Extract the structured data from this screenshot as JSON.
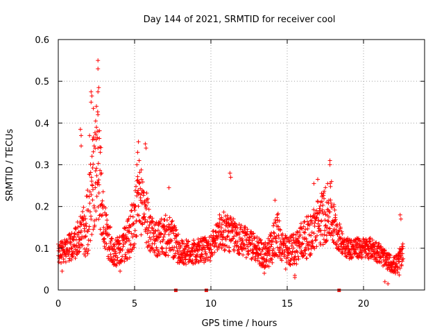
{
  "chart_data": {
    "type": "scatter",
    "title": "Day 144 of 2021, SRMTID for receiver cool",
    "xlabel": "GPS time / hours",
    "ylabel": "SRMTID / TECUs",
    "xlim": [
      0,
      24
    ],
    "ylim": [
      0,
      0.6
    ],
    "x_ticks": [
      "0",
      "5",
      "10",
      "15",
      "20"
    ],
    "y_ticks": [
      "0",
      "0.1",
      "0.2",
      "0.3",
      "0.4",
      "0.5",
      "0.6"
    ],
    "x_tick_values": [
      0,
      5,
      10,
      15,
      20
    ],
    "y_tick_values": [
      0,
      0.1,
      0.2,
      0.3,
      0.4,
      0.5,
      0.6
    ],
    "grid": true,
    "marker": "+",
    "colors": {
      "series": "#ff0000",
      "gap_marker": "#e8201c",
      "grid": "#a0a0a0"
    },
    "data_gap_markers_x": [
      7.7,
      9.7,
      18.4
    ],
    "envelope": {
      "hours": [
        0,
        0.5,
        1,
        1.5,
        2,
        2.3,
        2.5,
        2.7,
        3,
        3.5,
        4,
        4.5,
        5,
        5.3,
        5.6,
        6,
        6.5,
        7,
        7.5,
        8,
        9,
        10,
        10.5,
        11,
        11.5,
        12,
        12.5,
        13,
        13.5,
        14,
        14.3,
        14.6,
        15,
        15.5,
        16,
        16.5,
        17,
        17.5,
        17.8,
        18,
        18.5,
        19,
        19.5,
        20,
        20.5,
        21,
        21.5,
        22,
        22.3,
        22.6
      ],
      "center": [
        0.085,
        0.095,
        0.11,
        0.13,
        0.18,
        0.26,
        0.3,
        0.28,
        0.15,
        0.1,
        0.09,
        0.12,
        0.16,
        0.22,
        0.2,
        0.14,
        0.12,
        0.13,
        0.12,
        0.09,
        0.09,
        0.1,
        0.14,
        0.14,
        0.13,
        0.12,
        0.11,
        0.1,
        0.08,
        0.1,
        0.14,
        0.11,
        0.09,
        0.1,
        0.12,
        0.13,
        0.16,
        0.18,
        0.19,
        0.16,
        0.12,
        0.1,
        0.1,
        0.1,
        0.1,
        0.09,
        0.07,
        0.06,
        0.06,
        0.1
      ],
      "spread": [
        0.025,
        0.03,
        0.035,
        0.05,
        0.1,
        0.13,
        0.14,
        0.13,
        0.06,
        0.04,
        0.035,
        0.05,
        0.07,
        0.08,
        0.08,
        0.05,
        0.04,
        0.05,
        0.05,
        0.03,
        0.03,
        0.03,
        0.04,
        0.05,
        0.04,
        0.04,
        0.035,
        0.035,
        0.03,
        0.04,
        0.06,
        0.04,
        0.035,
        0.04,
        0.05,
        0.05,
        0.06,
        0.07,
        0.07,
        0.06,
        0.03,
        0.025,
        0.025,
        0.025,
        0.025,
        0.025,
        0.02,
        0.02,
        0.03,
        0.03
      ]
    },
    "peaks": [
      [
        2.6,
        0.55
      ],
      [
        2.6,
        0.53
      ],
      [
        2.65,
        0.485
      ],
      [
        2.6,
        0.475
      ],
      [
        2.15,
        0.475
      ],
      [
        2.2,
        0.465
      ],
      [
        2.15,
        0.45
      ],
      [
        2.5,
        0.44
      ],
      [
        2.3,
        0.435
      ],
      [
        2.6,
        0.42
      ],
      [
        2.45,
        0.405
      ],
      [
        2.5,
        0.39
      ],
      [
        2.6,
        0.38
      ],
      [
        1.45,
        0.385
      ],
      [
        1.5,
        0.37
      ],
      [
        2.05,
        0.37
      ],
      [
        2.25,
        0.36
      ],
      [
        1.5,
        0.345
      ],
      [
        2.35,
        0.345
      ],
      [
        2.6,
        0.34
      ],
      [
        2.75,
        0.33
      ],
      [
        5.25,
        0.355
      ],
      [
        5.7,
        0.35
      ],
      [
        5.75,
        0.34
      ],
      [
        5.2,
        0.33
      ],
      [
        5.3,
        0.31
      ],
      [
        5.15,
        0.3
      ],
      [
        11.25,
        0.28
      ],
      [
        11.3,
        0.27
      ],
      [
        17.8,
        0.31
      ],
      [
        17.8,
        0.3
      ],
      [
        17.0,
        0.265
      ],
      [
        17.9,
        0.26
      ],
      [
        16.75,
        0.255
      ],
      [
        14.2,
        0.215
      ],
      [
        7.25,
        0.245
      ],
      [
        22.4,
        0.18
      ],
      [
        22.45,
        0.17
      ],
      [
        14.9,
        0.05
      ],
      [
        15.5,
        0.035
      ],
      [
        15.5,
        0.03
      ],
      [
        21.4,
        0.02
      ],
      [
        21.6,
        0.015
      ],
      [
        4.05,
        0.045
      ],
      [
        0.25,
        0.045
      ],
      [
        13.5,
        0.04
      ]
    ]
  }
}
